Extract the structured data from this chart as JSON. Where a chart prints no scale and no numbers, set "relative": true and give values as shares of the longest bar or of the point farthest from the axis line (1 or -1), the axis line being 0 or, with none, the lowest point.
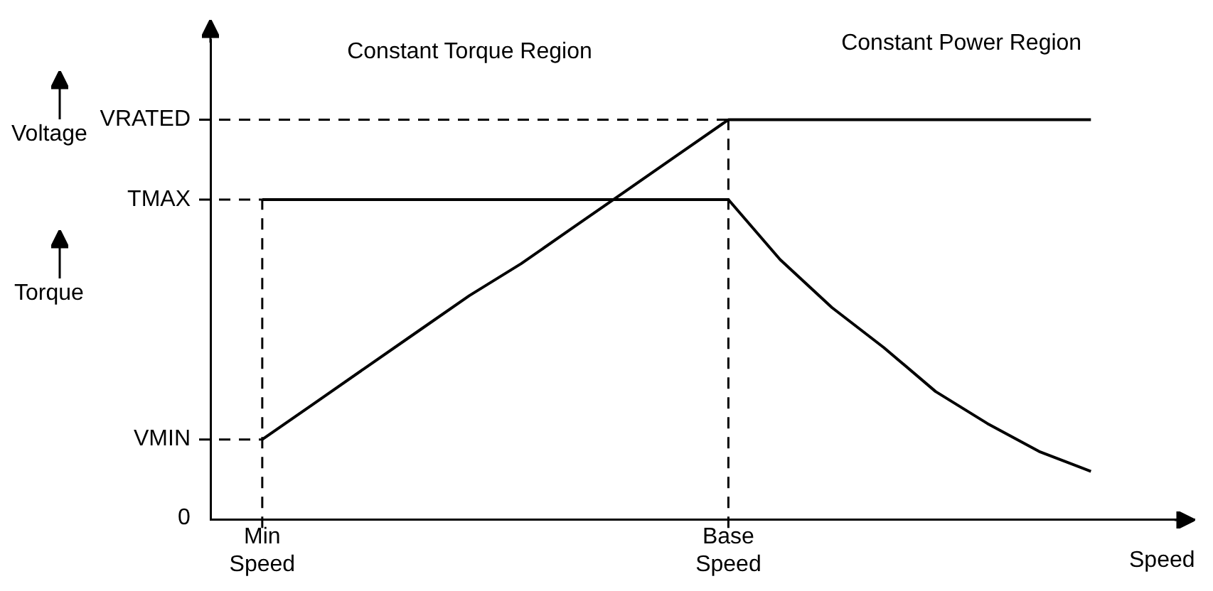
{
  "chart_data": {
    "type": "line",
    "relative": true,
    "xlabel": "Speed",
    "annotations": [
      "Voltage",
      "Torque",
      "Constant Torque Region",
      "Constant Power Region",
      "0"
    ],
    "categories": [
      null,
      "Min Speed",
      null,
      null,
      null,
      null,
      null,
      null,
      null,
      null,
      "Base Speed",
      null,
      null,
      null,
      null,
      null,
      null,
      null,
      null,
      null
    ],
    "legend": false,
    "grid": false,
    "marker": "none",
    "line_style": "solid",
    "series": [
      {
        "color": "#000000",
        "values": [
          null,
          0.2,
          0.29,
          0.38,
          0.47,
          0.56,
          0.64,
          0.73,
          0.82,
          0.91,
          1,
          1,
          1,
          1,
          1,
          1,
          1,
          1,
          null,
          null
        ]
      },
      {
        "color": "#000000",
        "values": [
          null,
          0.8,
          0.8,
          0.8,
          0.8,
          0.8,
          0.8,
          0.8,
          0.8,
          0.8,
          0.8,
          0.65,
          0.53,
          0.43,
          0.32,
          0.24,
          0.17,
          0.12,
          null,
          null
        ]
      }
    ],
    "ref_lines": [
      {
        "axis": "y",
        "value": 1,
        "label": "VRATED",
        "line_style": "dashed",
        "color": "#000000"
      },
      {
        "axis": "y",
        "value": 0.8,
        "label": "TMAX",
        "line_style": "dashed",
        "color": "#000000"
      },
      {
        "axis": "y",
        "value": 0.2,
        "label": "VMIN",
        "line_style": "dashed",
        "color": "#000000"
      },
      {
        "axis": "x",
        "value": "Min Speed",
        "line_style": "dashed",
        "color": "#000000"
      },
      {
        "axis": "x",
        "value": "Base Speed",
        "line_style": "dashed",
        "color": "#000000"
      }
    ]
  }
}
